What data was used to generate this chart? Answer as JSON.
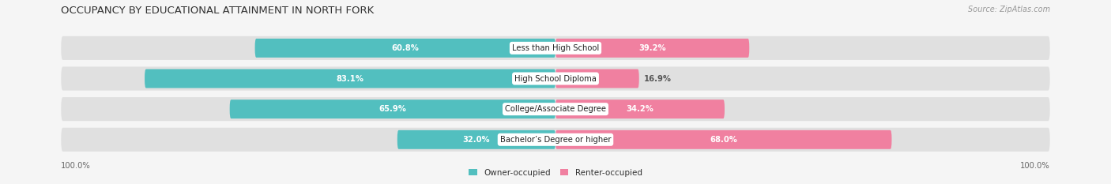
{
  "title": "OCCUPANCY BY EDUCATIONAL ATTAINMENT IN NORTH FORK",
  "source": "Source: ZipAtlas.com",
  "categories": [
    "Less than High School",
    "High School Diploma",
    "College/Associate Degree",
    "Bachelor’s Degree or higher"
  ],
  "owner_values": [
    60.8,
    83.1,
    65.9,
    32.0
  ],
  "renter_values": [
    39.2,
    16.9,
    34.2,
    68.0
  ],
  "owner_color": "#52BFBF",
  "renter_color": "#F080A0",
  "bar_bg_color": "#E0E0E0",
  "outer_bg_color": "#F0F0F0",
  "fig_bg_color": "#F5F5F5",
  "title_fontsize": 9.5,
  "source_fontsize": 7,
  "label_fontsize": 7.2,
  "value_fontsize": 7.2,
  "legend_fontsize": 7.5,
  "axis_label_fontsize": 7.2,
  "figsize": [
    14.06,
    2.33
  ],
  "dpi": 100
}
